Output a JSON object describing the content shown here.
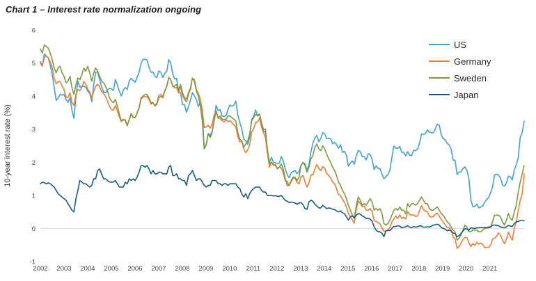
{
  "title": "Chart 1 – Interest rate normalization ongoing",
  "chart_data": {
    "type": "line",
    "title": "Chart 1 – Interest rate normalization ongoing",
    "xlabel": "",
    "ylabel": "10-year interest rate (%)",
    "ylim": [
      -1,
      6
    ],
    "yticks": [
      -1,
      0,
      1,
      2,
      3,
      4,
      5,
      6
    ],
    "xticks": [
      2002,
      2003,
      2004,
      2005,
      2006,
      2007,
      2008,
      2009,
      2010,
      2011,
      2012,
      2013,
      2014,
      2015,
      2016,
      2017,
      2018,
      2019,
      2020,
      2021
    ],
    "x_start_year": 2002.0,
    "x_end_year": 2022.45,
    "x_frequency": "monthly",
    "grid": "horizontal line at 0 only",
    "legend_position": "top-right",
    "zero_gridline_color": "#d9d9d9",
    "series": [
      {
        "name": "US",
        "color": "#3fa0d2",
        "values": [
          5.04,
          4.91,
          5.28,
          5.21,
          5.16,
          4.93,
          4.65,
          4.26,
          3.87,
          3.94,
          4.05,
          4.03,
          4.05,
          3.9,
          3.81,
          3.96,
          3.57,
          3.33,
          3.98,
          4.45,
          4.27,
          4.29,
          4.3,
          4.27,
          4.15,
          4.08,
          3.83,
          4.35,
          4.72,
          4.73,
          4.5,
          4.28,
          4.13,
          4.1,
          4.19,
          4.23,
          4.22,
          4.17,
          4.5,
          4.34,
          4.14,
          4.0,
          4.18,
          4.26,
          4.2,
          4.46,
          4.54,
          4.47,
          4.42,
          4.57,
          4.72,
          4.99,
          5.11,
          5.11,
          5.09,
          4.88,
          4.72,
          4.73,
          4.6,
          4.56,
          4.76,
          4.72,
          4.56,
          4.69,
          4.75,
          5.1,
          5.0,
          4.67,
          4.52,
          4.53,
          4.15,
          4.1,
          3.74,
          3.74,
          3.51,
          3.68,
          3.88,
          4.1,
          4.01,
          3.89,
          3.69,
          3.81,
          3.53,
          2.42,
          2.52,
          2.87,
          2.82,
          2.93,
          3.29,
          3.72,
          3.56,
          3.59,
          3.4,
          3.39,
          3.4,
          3.59,
          3.73,
          3.69,
          3.73,
          3.85,
          3.42,
          3.2,
          3.01,
          2.7,
          2.65,
          2.54,
          2.76,
          3.29,
          3.39,
          3.58,
          3.41,
          3.46,
          3.17,
          3.0,
          3.0,
          2.3,
          1.98,
          2.15,
          2.01,
          1.98,
          1.97,
          1.97,
          2.17,
          2.05,
          1.8,
          1.62,
          1.53,
          1.68,
          1.72,
          1.75,
          1.65,
          1.72,
          1.91,
          1.98,
          1.96,
          1.76,
          1.93,
          2.3,
          2.58,
          2.74,
          2.81,
          2.62,
          2.72,
          2.9,
          2.86,
          2.71,
          2.72,
          2.71,
          2.56,
          2.6,
          2.54,
          2.42,
          2.53,
          2.3,
          2.33,
          2.21,
          1.88,
          1.98,
          2.04,
          1.94,
          2.2,
          2.36,
          2.32,
          2.17,
          2.17,
          2.07,
          2.26,
          2.24,
          2.09,
          1.78,
          1.89,
          1.81,
          1.81,
          1.64,
          1.5,
          1.56,
          1.63,
          1.76,
          2.14,
          2.49,
          2.43,
          2.42,
          2.48,
          2.3,
          2.3,
          2.19,
          2.32,
          2.21,
          2.2,
          2.36,
          2.35,
          2.4,
          2.58,
          2.86,
          2.84,
          2.87,
          2.98,
          2.91,
          2.89,
          2.89,
          3.0,
          3.15,
          3.12,
          2.83,
          2.71,
          2.68,
          2.57,
          2.53,
          2.4,
          2.07,
          2.06,
          1.63,
          1.7,
          1.71,
          1.81,
          1.86,
          1.76,
          1.5,
          0.87,
          0.66,
          0.67,
          0.73,
          0.62,
          0.65,
          0.68,
          0.79,
          0.87,
          0.93,
          1.08,
          1.26,
          1.61,
          1.64,
          1.62,
          1.52,
          1.32,
          1.28,
          1.37,
          1.58,
          1.56,
          1.47,
          1.76,
          1.93,
          2.13,
          2.75,
          2.9,
          3.25
        ]
      },
      {
        "name": "Germany",
        "color": "#ee7c33",
        "values": [
          4.99,
          4.91,
          5.17,
          5.21,
          5.16,
          5.03,
          4.87,
          4.54,
          4.37,
          4.44,
          4.44,
          4.31,
          4.2,
          3.95,
          3.97,
          4.1,
          3.8,
          3.72,
          4.06,
          4.2,
          4.16,
          4.26,
          4.44,
          4.36,
          4.2,
          4.13,
          3.94,
          4.14,
          4.29,
          4.36,
          4.28,
          4.14,
          4.08,
          3.99,
          3.84,
          3.69,
          3.59,
          3.57,
          3.72,
          3.54,
          3.37,
          3.23,
          3.28,
          3.29,
          3.12,
          3.29,
          3.48,
          3.37,
          3.35,
          3.48,
          3.63,
          3.91,
          3.97,
          3.98,
          3.99,
          3.9,
          3.76,
          3.8,
          3.72,
          3.79,
          4.03,
          4.05,
          3.98,
          4.17,
          4.29,
          4.57,
          4.5,
          4.3,
          4.24,
          4.27,
          4.09,
          4.29,
          4.02,
          3.9,
          3.82,
          4.05,
          4.2,
          4.53,
          4.5,
          4.21,
          4.08,
          3.9,
          3.57,
          3.05,
          3.07,
          3.12,
          3.03,
          3.15,
          3.42,
          3.54,
          3.33,
          3.33,
          3.26,
          3.21,
          3.28,
          3.22,
          3.26,
          3.19,
          3.13,
          3.07,
          2.78,
          2.61,
          2.64,
          2.4,
          2.29,
          2.38,
          2.53,
          2.91,
          3.02,
          3.2,
          3.21,
          3.34,
          3.06,
          2.89,
          2.74,
          2.26,
          1.85,
          2.0,
          1.91,
          1.93,
          1.82,
          1.85,
          1.83,
          1.68,
          1.44,
          1.43,
          1.29,
          1.42,
          1.52,
          1.52,
          1.39,
          1.35,
          1.56,
          1.6,
          1.41,
          1.25,
          1.37,
          1.62,
          1.62,
          1.8,
          1.93,
          1.81,
          1.75,
          1.87,
          1.82,
          1.66,
          1.6,
          1.53,
          1.4,
          1.35,
          1.2,
          1.02,
          1.0,
          0.87,
          0.79,
          0.64,
          0.45,
          0.35,
          0.26,
          0.16,
          0.58,
          0.83,
          0.76,
          0.66,
          0.68,
          0.55,
          0.55,
          0.6,
          0.51,
          0.24,
          0.21,
          0.17,
          0.14,
          0.01,
          -0.09,
          -0.07,
          -0.05,
          0.03,
          0.19,
          0.29,
          0.38,
          0.3,
          0.41,
          0.3,
          0.34,
          0.28,
          0.51,
          0.42,
          0.4,
          0.41,
          0.36,
          0.38,
          0.54,
          0.69,
          0.57,
          0.52,
          0.5,
          0.38,
          0.34,
          0.36,
          0.43,
          0.46,
          0.37,
          0.27,
          0.2,
          0.11,
          0.03,
          0.03,
          -0.06,
          -0.26,
          -0.31,
          -0.6,
          -0.55,
          -0.45,
          -0.33,
          -0.27,
          -0.28,
          -0.43,
          -0.55,
          -0.46,
          -0.51,
          -0.42,
          -0.47,
          -0.44,
          -0.49,
          -0.58,
          -0.57,
          -0.57,
          -0.51,
          -0.33,
          -0.3,
          -0.24,
          -0.13,
          -0.2,
          -0.35,
          -0.46,
          -0.33,
          -0.11,
          -0.25,
          -0.35,
          0.01,
          0.21,
          0.55,
          0.85,
          1.05,
          1.65
        ]
      },
      {
        "name": "Sweden",
        "color": "#7a9941",
        "values": [
          5.42,
          5.3,
          5.55,
          5.5,
          5.45,
          5.3,
          5.1,
          4.85,
          4.7,
          4.85,
          4.9,
          4.7,
          4.6,
          4.4,
          4.45,
          4.6,
          4.25,
          4.05,
          4.35,
          4.55,
          4.5,
          4.65,
          4.85,
          4.75,
          4.9,
          4.7,
          4.45,
          4.7,
          4.85,
          4.75,
          4.6,
          4.45,
          4.4,
          4.3,
          4.15,
          3.95,
          3.85,
          3.8,
          3.9,
          3.7,
          3.45,
          3.25,
          3.3,
          3.25,
          3.1,
          3.3,
          3.45,
          3.35,
          3.35,
          3.5,
          3.65,
          3.95,
          4.0,
          4.05,
          4.05,
          3.95,
          3.8,
          3.8,
          3.7,
          3.75,
          3.95,
          4.0,
          3.95,
          4.15,
          4.3,
          4.55,
          4.5,
          4.3,
          4.3,
          4.35,
          4.2,
          4.35,
          4.1,
          3.95,
          3.9,
          4.1,
          4.25,
          4.55,
          4.45,
          4.15,
          4.0,
          3.7,
          3.25,
          2.4,
          2.55,
          2.85,
          2.75,
          2.9,
          3.25,
          3.55,
          3.35,
          3.4,
          3.3,
          3.3,
          3.3,
          3.4,
          3.4,
          3.35,
          3.3,
          3.25,
          2.9,
          2.7,
          2.65,
          2.45,
          2.55,
          2.65,
          2.85,
          3.25,
          3.35,
          3.45,
          3.4,
          3.45,
          3.2,
          2.95,
          2.9,
          2.4,
          1.95,
          2.0,
          1.95,
          1.9,
          1.8,
          1.85,
          1.95,
          1.8,
          1.5,
          1.3,
          1.3,
          1.45,
          1.55,
          1.55,
          1.45,
          1.55,
          1.9,
          2.0,
          1.9,
          1.7,
          1.85,
          2.1,
          2.2,
          2.45,
          2.55,
          2.4,
          2.35,
          2.5,
          2.4,
          2.25,
          2.1,
          2.0,
          1.85,
          1.75,
          1.6,
          1.4,
          1.3,
          1.15,
          1.05,
          0.9,
          0.7,
          0.55,
          0.4,
          0.3,
          0.7,
          0.95,
          0.85,
          0.7,
          0.75,
          0.7,
          0.8,
          0.9,
          0.8,
          0.55,
          0.6,
          0.55,
          0.6,
          0.45,
          0.15,
          0.1,
          0.15,
          0.25,
          0.4,
          0.55,
          0.6,
          0.55,
          0.65,
          0.55,
          0.55,
          0.45,
          0.75,
          0.65,
          0.75,
          0.75,
          0.7,
          0.75,
          0.85,
          0.95,
          0.85,
          0.75,
          0.75,
          0.6,
          0.55,
          0.55,
          0.6,
          0.65,
          0.55,
          0.45,
          0.4,
          0.3,
          0.2,
          0.15,
          0.05,
          -0.05,
          -0.1,
          -0.35,
          -0.3,
          -0.2,
          -0.05,
          0.1,
          0.05,
          -0.1,
          -0.1,
          -0.05,
          -0.05,
          -0.05,
          -0.1,
          -0.1,
          -0.05,
          0.0,
          0.0,
          0.05,
          0.05,
          0.2,
          0.4,
          0.4,
          0.4,
          0.35,
          0.2,
          0.1,
          0.25,
          0.45,
          0.3,
          0.25,
          0.5,
          0.7,
          1.1,
          1.4,
          1.65,
          1.9
        ]
      },
      {
        "name": "Japan",
        "color": "#1a5a7a",
        "values": [
          1.35,
          1.4,
          1.38,
          1.35,
          1.38,
          1.35,
          1.3,
          1.25,
          1.15,
          1.05,
          1.0,
          0.95,
          0.9,
          0.85,
          0.75,
          0.65,
          0.55,
          0.5,
          0.9,
          1.15,
          1.45,
          1.4,
          1.35,
          1.35,
          1.3,
          1.25,
          1.3,
          1.5,
          1.5,
          1.75,
          1.8,
          1.65,
          1.5,
          1.5,
          1.45,
          1.4,
          1.4,
          1.4,
          1.45,
          1.35,
          1.25,
          1.25,
          1.25,
          1.4,
          1.35,
          1.5,
          1.45,
          1.5,
          1.45,
          1.55,
          1.7,
          1.9,
          1.9,
          1.85,
          1.9,
          1.8,
          1.65,
          1.75,
          1.65,
          1.65,
          1.7,
          1.7,
          1.65,
          1.65,
          1.65,
          1.85,
          1.9,
          1.6,
          1.6,
          1.65,
          1.5,
          1.5,
          1.45,
          1.45,
          1.3,
          1.6,
          1.65,
          1.75,
          1.6,
          1.45,
          1.5,
          1.5,
          1.4,
          1.3,
          1.25,
          1.3,
          1.3,
          1.45,
          1.45,
          1.45,
          1.35,
          1.35,
          1.3,
          1.35,
          1.35,
          1.3,
          1.35,
          1.35,
          1.35,
          1.35,
          1.25,
          1.2,
          1.05,
          0.95,
          1.05,
          0.9,
          1.05,
          1.15,
          1.2,
          1.25,
          1.25,
          1.25,
          1.15,
          1.1,
          1.1,
          1.0,
          1.0,
          1.0,
          0.98,
          0.99,
          0.97,
          0.97,
          1.0,
          0.92,
          0.85,
          0.82,
          0.78,
          0.8,
          0.78,
          0.77,
          0.73,
          0.77,
          0.78,
          0.72,
          0.6,
          0.58,
          0.8,
          0.85,
          0.82,
          0.73,
          0.68,
          0.62,
          0.62,
          0.7,
          0.65,
          0.6,
          0.62,
          0.61,
          0.58,
          0.57,
          0.53,
          0.5,
          0.53,
          0.47,
          0.45,
          0.35,
          0.25,
          0.35,
          0.38,
          0.32,
          0.4,
          0.45,
          0.43,
          0.38,
          0.35,
          0.3,
          0.31,
          0.28,
          0.22,
          0.05,
          -0.05,
          -0.1,
          -0.1,
          -0.15,
          -0.25,
          -0.07,
          -0.06,
          -0.06,
          0.0,
          0.06,
          0.06,
          0.08,
          0.07,
          0.02,
          0.04,
          0.05,
          0.08,
          0.04,
          0.02,
          0.06,
          0.04,
          0.05,
          0.08,
          0.07,
          0.04,
          0.04,
          0.05,
          0.04,
          0.07,
          0.1,
          0.11,
          0.13,
          0.1,
          0.03,
          0.0,
          -0.02,
          -0.07,
          -0.05,
          -0.07,
          -0.14,
          -0.15,
          -0.25,
          -0.22,
          -0.15,
          -0.08,
          -0.01,
          -0.02,
          -0.06,
          0.02,
          0.01,
          0.0,
          0.02,
          0.02,
          0.03,
          0.02,
          0.03,
          0.03,
          0.02,
          0.04,
          0.1,
          0.1,
          0.09,
          0.08,
          0.05,
          0.03,
          0.02,
          0.05,
          0.09,
          0.07,
          0.06,
          0.15,
          0.2,
          0.21,
          0.24,
          0.24,
          0.23
        ]
      }
    ]
  }
}
